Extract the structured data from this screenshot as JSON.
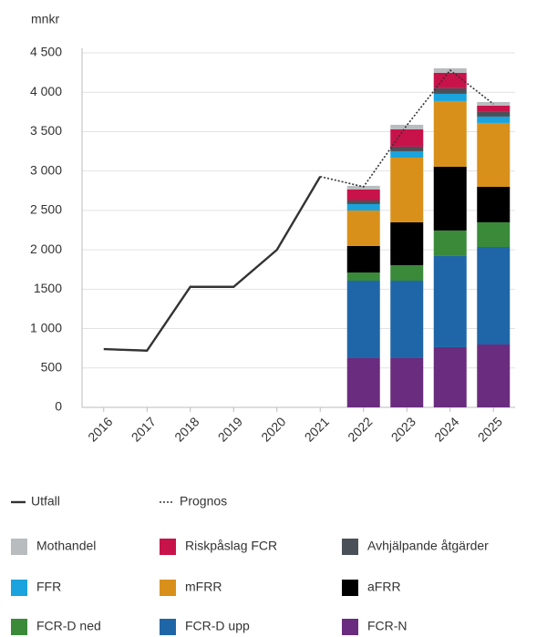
{
  "chart_data": {
    "type": "bar",
    "y_label": "mnkr",
    "categories": [
      "2016",
      "2017",
      "2018",
      "2019",
      "2020",
      "2021",
      "2022",
      "2023",
      "2024",
      "2025"
    ],
    "ylim": [
      0,
      4500
    ],
    "yticks": [
      0,
      500,
      {
        "value": 1000,
        "label": "1 000"
      },
      1500,
      {
        "value": 2000,
        "label": "2 000"
      },
      {
        "value": 2500,
        "label": "2 500"
      },
      {
        "value": 3000,
        "label": "3 000"
      },
      {
        "value": 3500,
        "label": "3 500"
      },
      {
        "value": 4000,
        "label": "4 000"
      },
      {
        "value": 4500,
        "label": "4 500"
      }
    ],
    "grid": true,
    "stacked": true,
    "series": [
      {
        "name": "FCR-N",
        "color": "#6a2c7e",
        "values": [
          null,
          null,
          null,
          null,
          null,
          null,
          625,
          625,
          764,
          798
        ]
      },
      {
        "name": "FCR-D upp",
        "color": "#1f66a8",
        "values": [
          null,
          null,
          null,
          null,
          null,
          null,
          983,
          983,
          1157,
          1238
        ]
      },
      {
        "name": "FCR-D ned",
        "color": "#3a8a3a",
        "values": [
          null,
          null,
          null,
          null,
          null,
          null,
          104,
          197,
          324,
          313
        ]
      },
      {
        "name": "aFRR",
        "color": "#000000",
        "values": [
          null,
          null,
          null,
          null,
          null,
          null,
          336,
          544,
          810,
          451
        ]
      },
      {
        "name": "mFRR",
        "color": "#d9901a",
        "values": [
          null,
          null,
          null,
          null,
          null,
          null,
          451,
          821,
          833,
          810
        ]
      },
      {
        "name": "FFR",
        "color": "#1aa3dc",
        "values": [
          null,
          null,
          null,
          null,
          null,
          null,
          81,
          81,
          92,
          81
        ]
      },
      {
        "name": "Avhjälpande åtgärder",
        "color": "#4a5058",
        "values": [
          null,
          null,
          null,
          null,
          null,
          null,
          46,
          58,
          70,
          58
        ]
      },
      {
        "name": "Riskpåslag FCR",
        "color": "#c8134a",
        "values": [
          null,
          null,
          null,
          null,
          null,
          null,
          139,
          220,
          196,
          81
        ]
      },
      {
        "name": "Mothandel",
        "color": "#b9bcbf",
        "values": [
          null,
          null,
          null,
          null,
          null,
          null,
          47,
          58,
          58,
          46
        ]
      }
    ],
    "lines": [
      {
        "name": "Utfall",
        "color": "#333333",
        "style": "solid",
        "values": [
          740,
          720,
          1530,
          1530,
          2000,
          2930,
          null,
          null,
          null,
          null
        ]
      },
      {
        "name": "Prognos",
        "color": "#333333",
        "style": "dotted",
        "values": [
          null,
          null,
          null,
          null,
          null,
          2930,
          2800,
          3580,
          4280,
          3850
        ]
      }
    ]
  }
}
